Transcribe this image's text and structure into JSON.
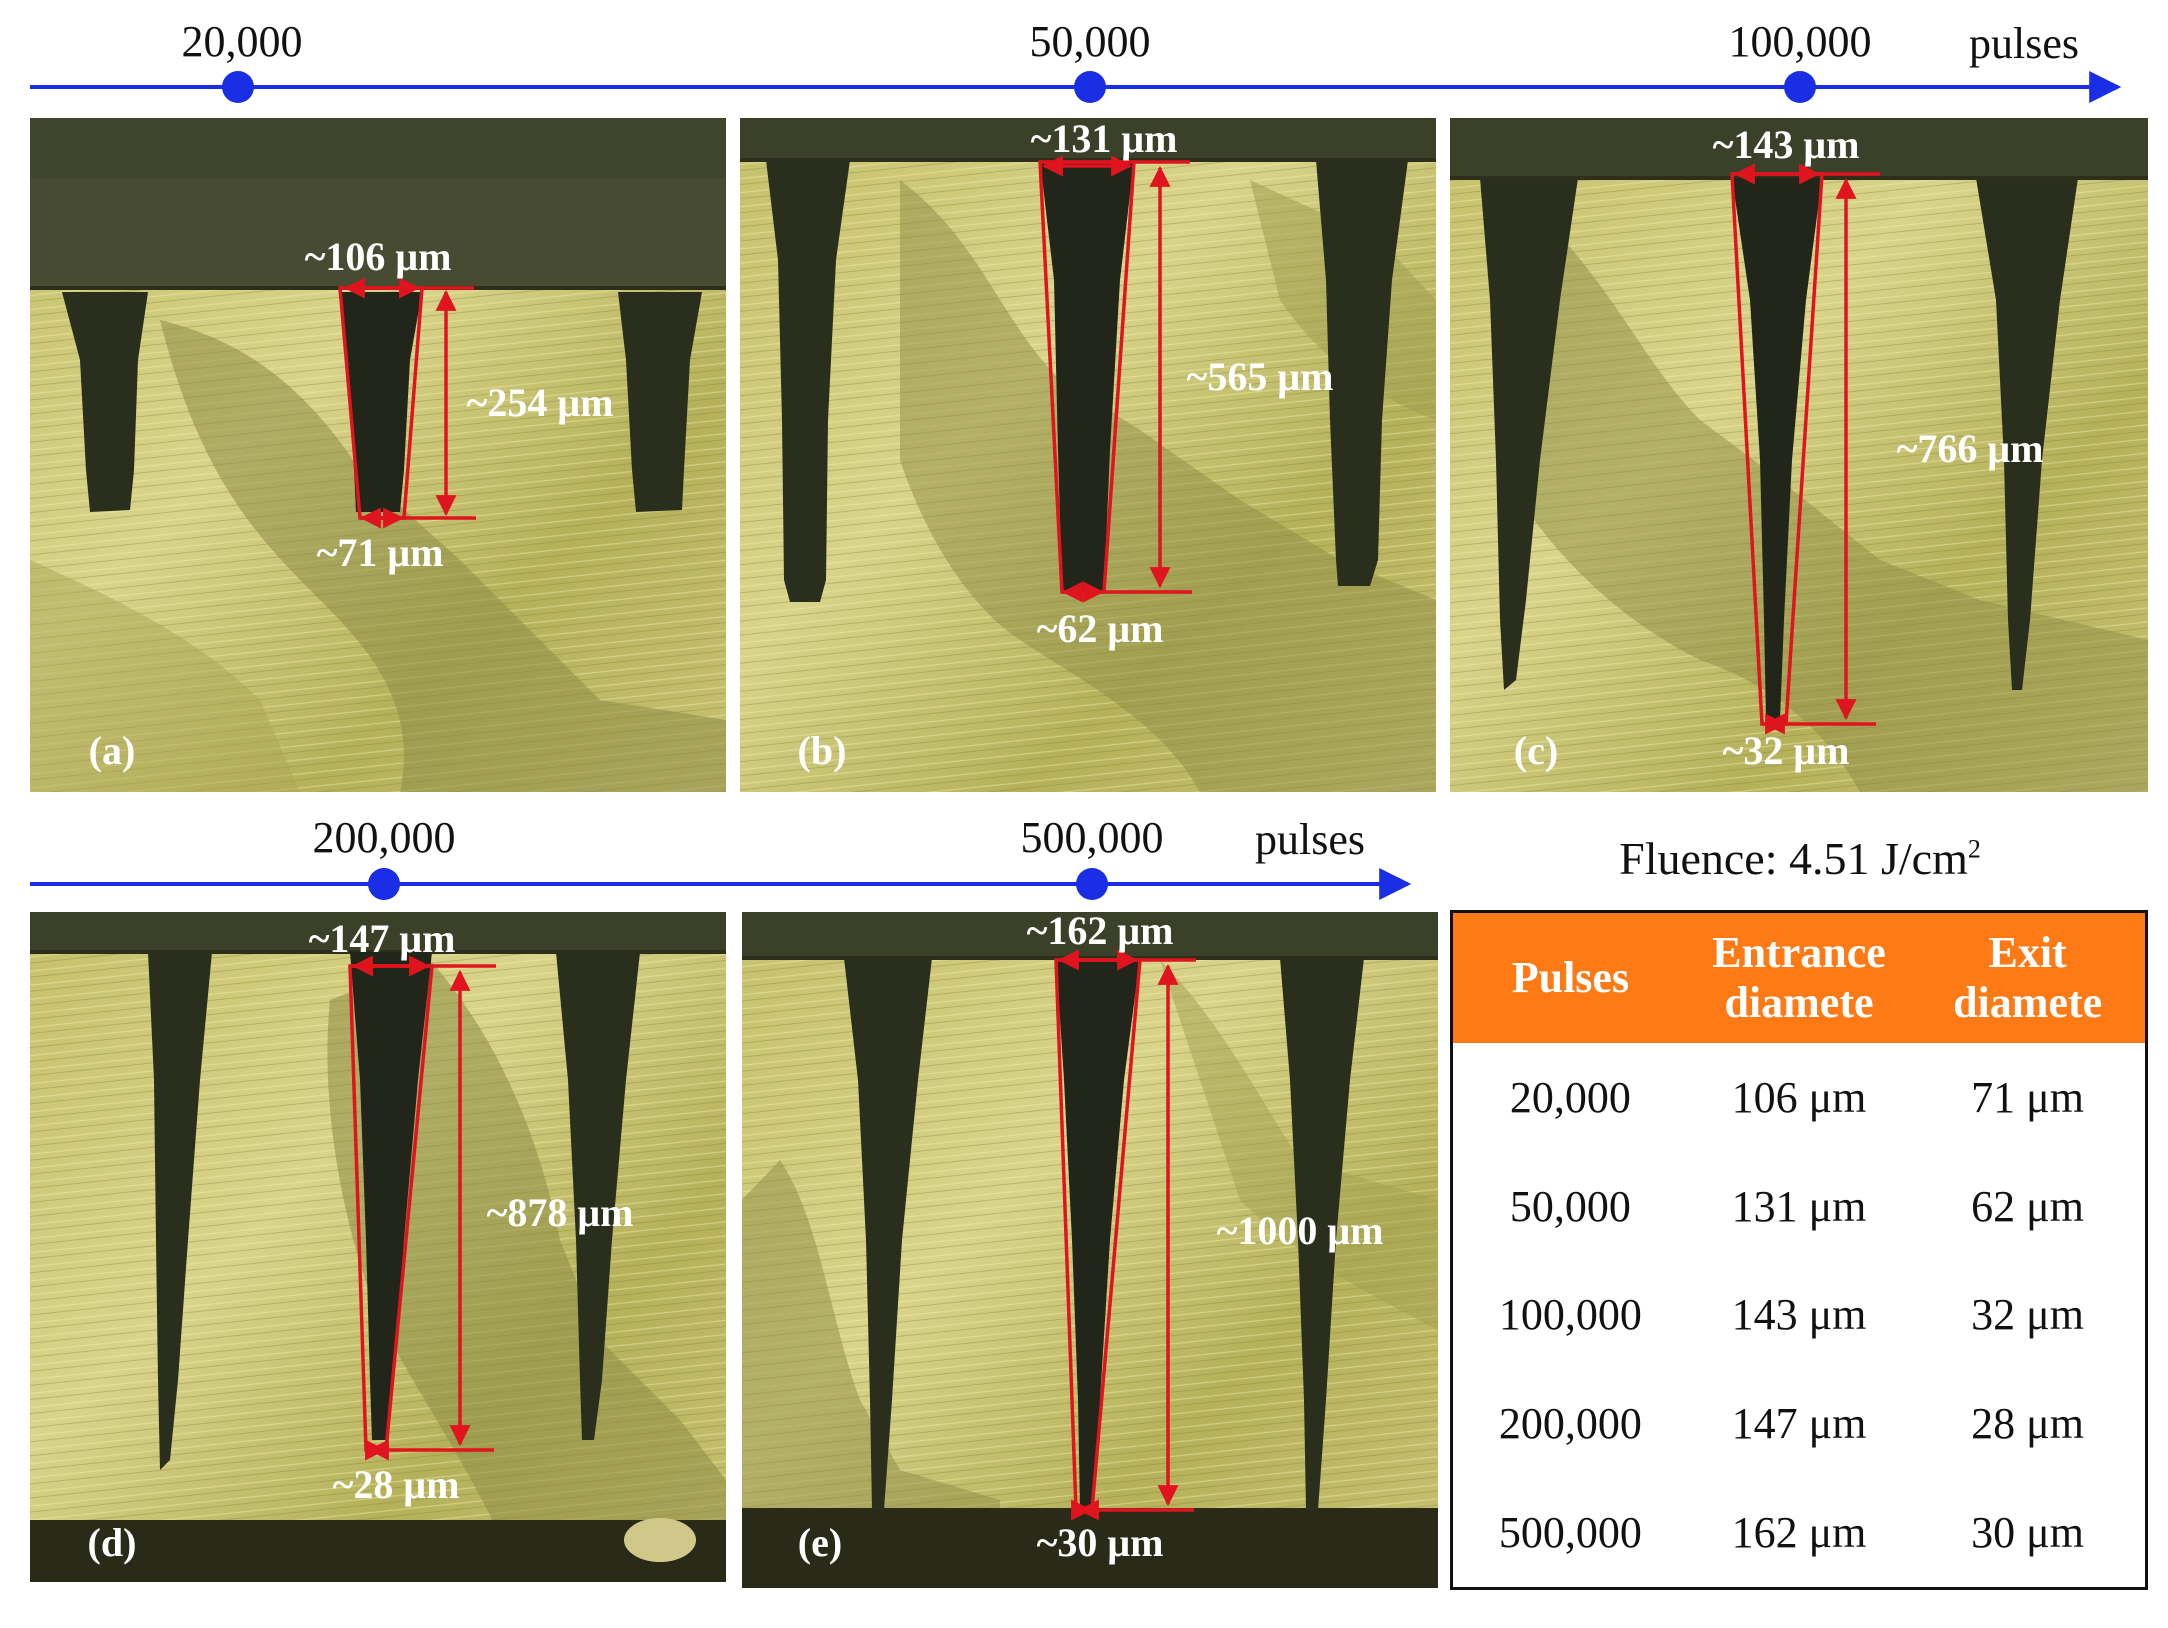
{
  "timelines": [
    {
      "unit_label": "pulses",
      "ticks": [
        "20,000",
        "50,000",
        "100,000"
      ]
    },
    {
      "unit_label": "pulses",
      "ticks": [
        "200,000",
        "500,000"
      ]
    }
  ],
  "panels": [
    {
      "id": "a",
      "label": "(a)",
      "entrance": "~106 μm",
      "depth": "~254 μm",
      "exit": "~71 μm"
    },
    {
      "id": "b",
      "label": "(b)",
      "entrance": "~131 μm",
      "depth": "~565 μm",
      "exit": "~62 μm"
    },
    {
      "id": "c",
      "label": "(c)",
      "entrance": "~143 μm",
      "depth": "~766 μm",
      "exit": "~32 μm"
    },
    {
      "id": "d",
      "label": "(d)",
      "entrance": "~147 μm",
      "depth": "~878 μm",
      "exit": "~28 μm"
    },
    {
      "id": "e",
      "label": "(e)",
      "entrance": "~162 μm",
      "depth": "~1000 μm",
      "exit": "~30 μm"
    }
  ],
  "fluence": {
    "label": "Fluence: 4.51 J/cm",
    "superscript": "2"
  },
  "table": {
    "headers": [
      "Pulses",
      "Entrance diamete",
      "Exit diamete"
    ],
    "rows": [
      [
        "20,000",
        "106 μm",
        "71 μm"
      ],
      [
        "50,000",
        "131 μm",
        "62 μm"
      ],
      [
        "100,000",
        "143 μm",
        "32 μm"
      ],
      [
        "200,000",
        "147 μm",
        "28 μm"
      ],
      [
        "500,000",
        "162 μm",
        "30 μm"
      ]
    ]
  },
  "colors": {
    "timeline": "#1a2ee6",
    "annotation": "#e0141e",
    "metal_bright": "#c9c46a",
    "metal_dark": "#7d7d3e",
    "hole": "#1c1f14",
    "table_header": "#ff7a14"
  }
}
